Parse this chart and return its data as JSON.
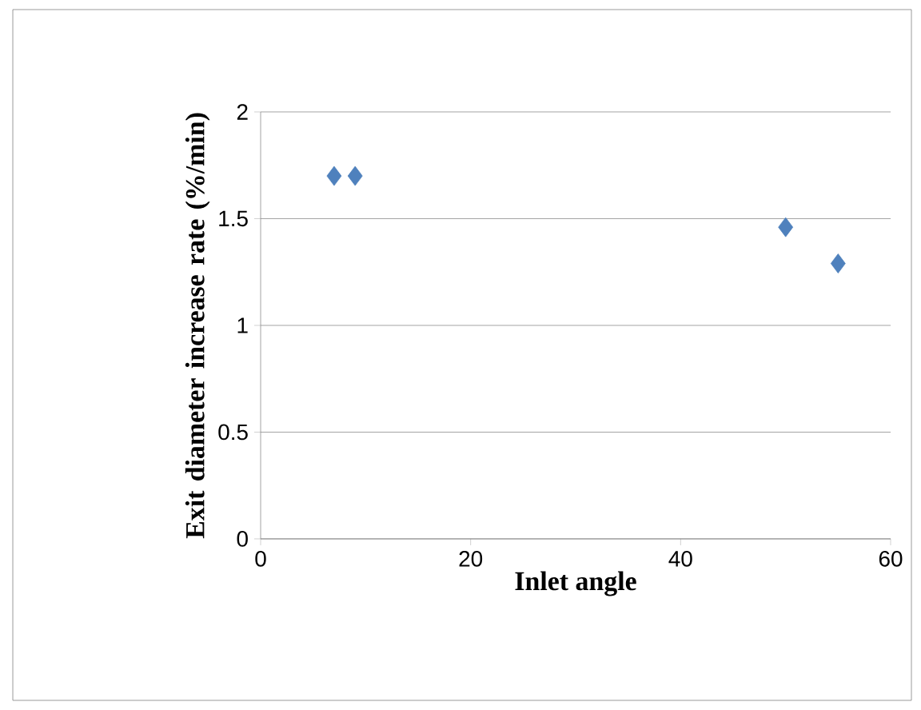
{
  "chart_data": {
    "type": "scatter",
    "xlabel": "Inlet angle",
    "ylabel": "Exit diameter increase rate (%/min)",
    "series": [
      {
        "color": "#4f81bd",
        "x": [
          7,
          9,
          50,
          55
        ],
        "values": [
          1.7,
          1.7,
          1.46,
          1.29
        ]
      }
    ],
    "xlim": [
      0,
      60
    ],
    "ylim": [
      0,
      2
    ],
    "xticks": [
      0,
      20,
      40,
      60
    ],
    "yticks": [
      0,
      0.5,
      1,
      1.5,
      2
    ],
    "grid": "y",
    "marker": "diamond"
  }
}
